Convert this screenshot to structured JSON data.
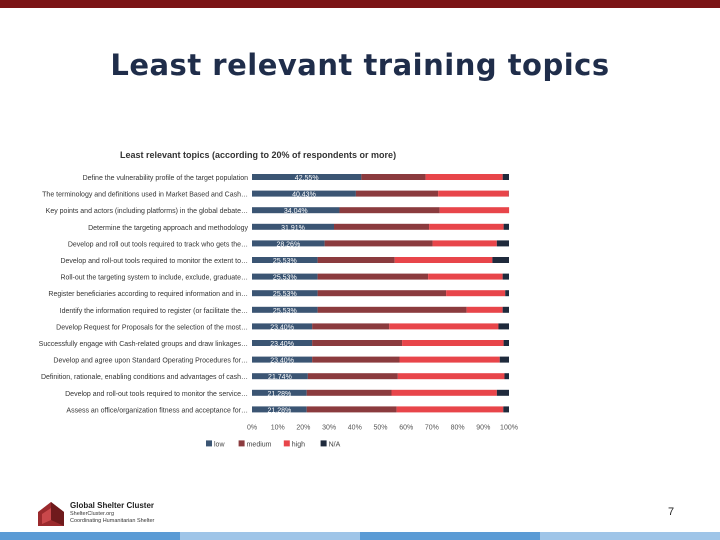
{
  "slide": {
    "title": "Least relevant training topics",
    "page_number": "7"
  },
  "footer": {
    "org_name": "Global Shelter Cluster",
    "org_url": "ShelterCluster.org",
    "org_tagline": "Coordinating Humanitarian Shelter"
  },
  "colors": {
    "low": "#3b5573",
    "medium": "#8b3b3e",
    "high": "#e8454a",
    "na": "#1f2a3c",
    "top_bar": "#7b1416",
    "title": "#1f2d4a"
  },
  "chart_data": {
    "type": "bar",
    "orientation": "horizontal",
    "stacked": true,
    "title": "Least relevant topics (according to 20% of respondents or more)",
    "categories": [
      "Define the vulnerability profile of the target population",
      "The terminology and definitions used in Market Based and Cash…",
      "Key points and actors (including platforms) in the global debate…",
      "Determine the targeting approach and methodology",
      "Develop and roll out tools required to track who gets the…",
      "Develop and roll-out tools required to monitor the extent to…",
      "Roll-out the targeting system to include, exclude, graduate…",
      "Register beneficiaries according to required information and in…",
      "Identify the information required to register (or facilitate the…",
      "Develop Request for Proposals for the selection of the most…",
      "Successfully engage with Cash-related groups and draw linkages…",
      "Develop and agree upon Standard Operating Procedures for…",
      "Definition, rationale, enabling conditions and advantages of cash…",
      "Develop and roll-out tools required to monitor the service…",
      "Assess an office/organization fitness and acceptance for…"
    ],
    "series": [
      {
        "name": "low",
        "values": [
          42.55,
          40.43,
          34.04,
          31.91,
          28.26,
          25.53,
          25.53,
          25.53,
          25.53,
          23.4,
          23.4,
          23.4,
          21.74,
          21.28,
          21.28
        ]
      },
      {
        "name": "medium",
        "values": [
          25.0,
          32.0,
          39.0,
          37.0,
          42.0,
          30.0,
          43.0,
          50.0,
          58.0,
          30.0,
          35.0,
          34.0,
          35.0,
          33.0,
          35.0
        ]
      },
      {
        "name": "high",
        "values": [
          30.0,
          27.5,
          27.0,
          29.0,
          25.0,
          38.0,
          29.0,
          23.0,
          14.0,
          42.5,
          39.5,
          39.0,
          41.5,
          41.0,
          41.5
        ]
      },
      {
        "name": "N/A",
        "values": [
          2.45,
          0.07,
          0.0,
          2.09,
          4.74,
          6.47,
          2.47,
          1.47,
          2.47,
          4.1,
          2.1,
          3.6,
          1.76,
          4.72,
          2.22
        ]
      }
    ],
    "data_labels": [
      "42.55%",
      "40.43%",
      "34.04%",
      "31.91%",
      "28.26%",
      "25.53%",
      "25.53%",
      "25.53%",
      "25.53%",
      "23.40%",
      "23.40%",
      "23.40%",
      "21.74%",
      "21.28%",
      "21.28%"
    ],
    "x_ticks": [
      "0%",
      "10%",
      "20%",
      "30%",
      "40%",
      "50%",
      "60%",
      "70%",
      "80%",
      "90%",
      "100%"
    ],
    "xlim": [
      0,
      100
    ],
    "legend": [
      "low",
      "medium",
      "high",
      "N/A"
    ],
    "legend_position": "bottom",
    "grid": false
  }
}
